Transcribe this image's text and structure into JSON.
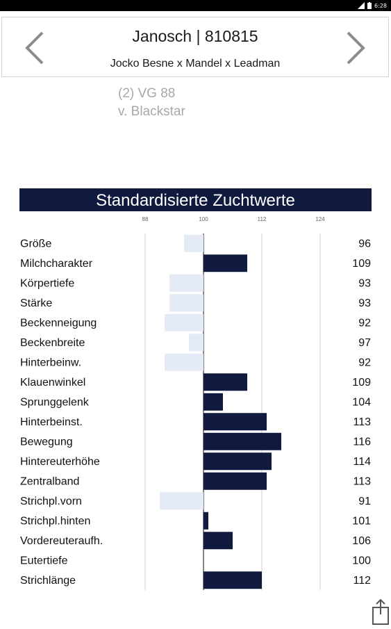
{
  "status_bar": {
    "time": "6:28"
  },
  "header": {
    "title": "Janosch | 810815",
    "subtitle": "Jocko Besne x Mandel x Leadman"
  },
  "info": {
    "line1": "(2) VG 88",
    "line2": "v. Blackstar"
  },
  "section": {
    "title": "Standardisierte Zuchtwerte"
  },
  "chart_data": {
    "type": "bar",
    "orientation": "horizontal",
    "baseline": 100,
    "xlim": [
      88,
      124
    ],
    "xticks": [
      88,
      100,
      112,
      124
    ],
    "grid": true,
    "colors": {
      "above": "#0f1a3e",
      "below": "#e4ebf6"
    },
    "categories": [
      "Größe",
      "Milchcharakter",
      "Körpertiefe",
      "Stärke",
      "Beckenneigung",
      "Beckenbreite",
      "Hinterbeinw.",
      "Klauenwinkel",
      "Sprunggelenk",
      "Hinterbeinst.",
      "Bewegung",
      "Hintereuterhöhe",
      "Zentralband",
      "Strichpl.vorn",
      "Strichpl.hinten",
      "Vordereuteraufh.",
      "Eutertiefe",
      "Strichlänge"
    ],
    "values": [
      96,
      109,
      93,
      93,
      92,
      97,
      92,
      109,
      104,
      113,
      116,
      114,
      113,
      91,
      101,
      106,
      100,
      112
    ]
  },
  "icons": {
    "prev": "chevron-left-icon",
    "next": "chevron-right-icon",
    "share": "share-icon"
  }
}
